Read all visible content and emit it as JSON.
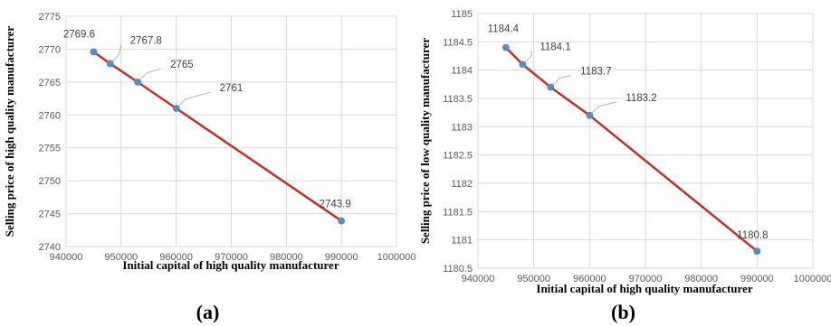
{
  "chart_data": [
    {
      "type": "line",
      "panel_caption": "(a)",
      "xlabel": "Initial capital of high quality manufacturer",
      "ylabel": "Selling price of high quality manufacturer",
      "xlim": [
        940000,
        1000000
      ],
      "ylim": [
        2740,
        2775
      ],
      "x_ticks": [
        940000,
        950000,
        960000,
        970000,
        980000,
        990000,
        1000000
      ],
      "y_ticks": [
        2740,
        2745,
        2750,
        2755,
        2760,
        2765,
        2770,
        2775
      ],
      "grid": true,
      "x": [
        945000,
        948000,
        953000,
        960000,
        990000
      ],
      "values": [
        2769.6,
        2767.8,
        2765,
        2761,
        2743.9
      ],
      "data_labels": [
        "2769.6",
        "2767.8",
        "2765",
        "2761",
        "2743.9"
      ],
      "line_color": "#c0302b",
      "marker_color": "#5b8ec9"
    },
    {
      "type": "line",
      "panel_caption": "(b)",
      "xlabel": "Initial capital of high quality manufacturer",
      "ylabel": "Selling price of low quality manufacturer",
      "xlim": [
        940000,
        1000000
      ],
      "ylim": [
        1180.5,
        1185
      ],
      "x_ticks": [
        940000,
        950000,
        960000,
        970000,
        980000,
        990000,
        1000000
      ],
      "y_ticks": [
        1180.5,
        1181,
        1181.5,
        1182,
        1182.5,
        1183,
        1183.5,
        1184,
        1184.5,
        1185
      ],
      "grid": true,
      "x": [
        945000,
        948000,
        953000,
        960000,
        990000
      ],
      "values": [
        1184.4,
        1184.1,
        1183.7,
        1183.2,
        1180.8
      ],
      "data_labels": [
        "1184.4",
        "1184.1",
        "1183.7",
        "1183.2",
        "1180.8"
      ],
      "line_color": "#c0302b",
      "marker_color": "#5b8ec9"
    }
  ]
}
